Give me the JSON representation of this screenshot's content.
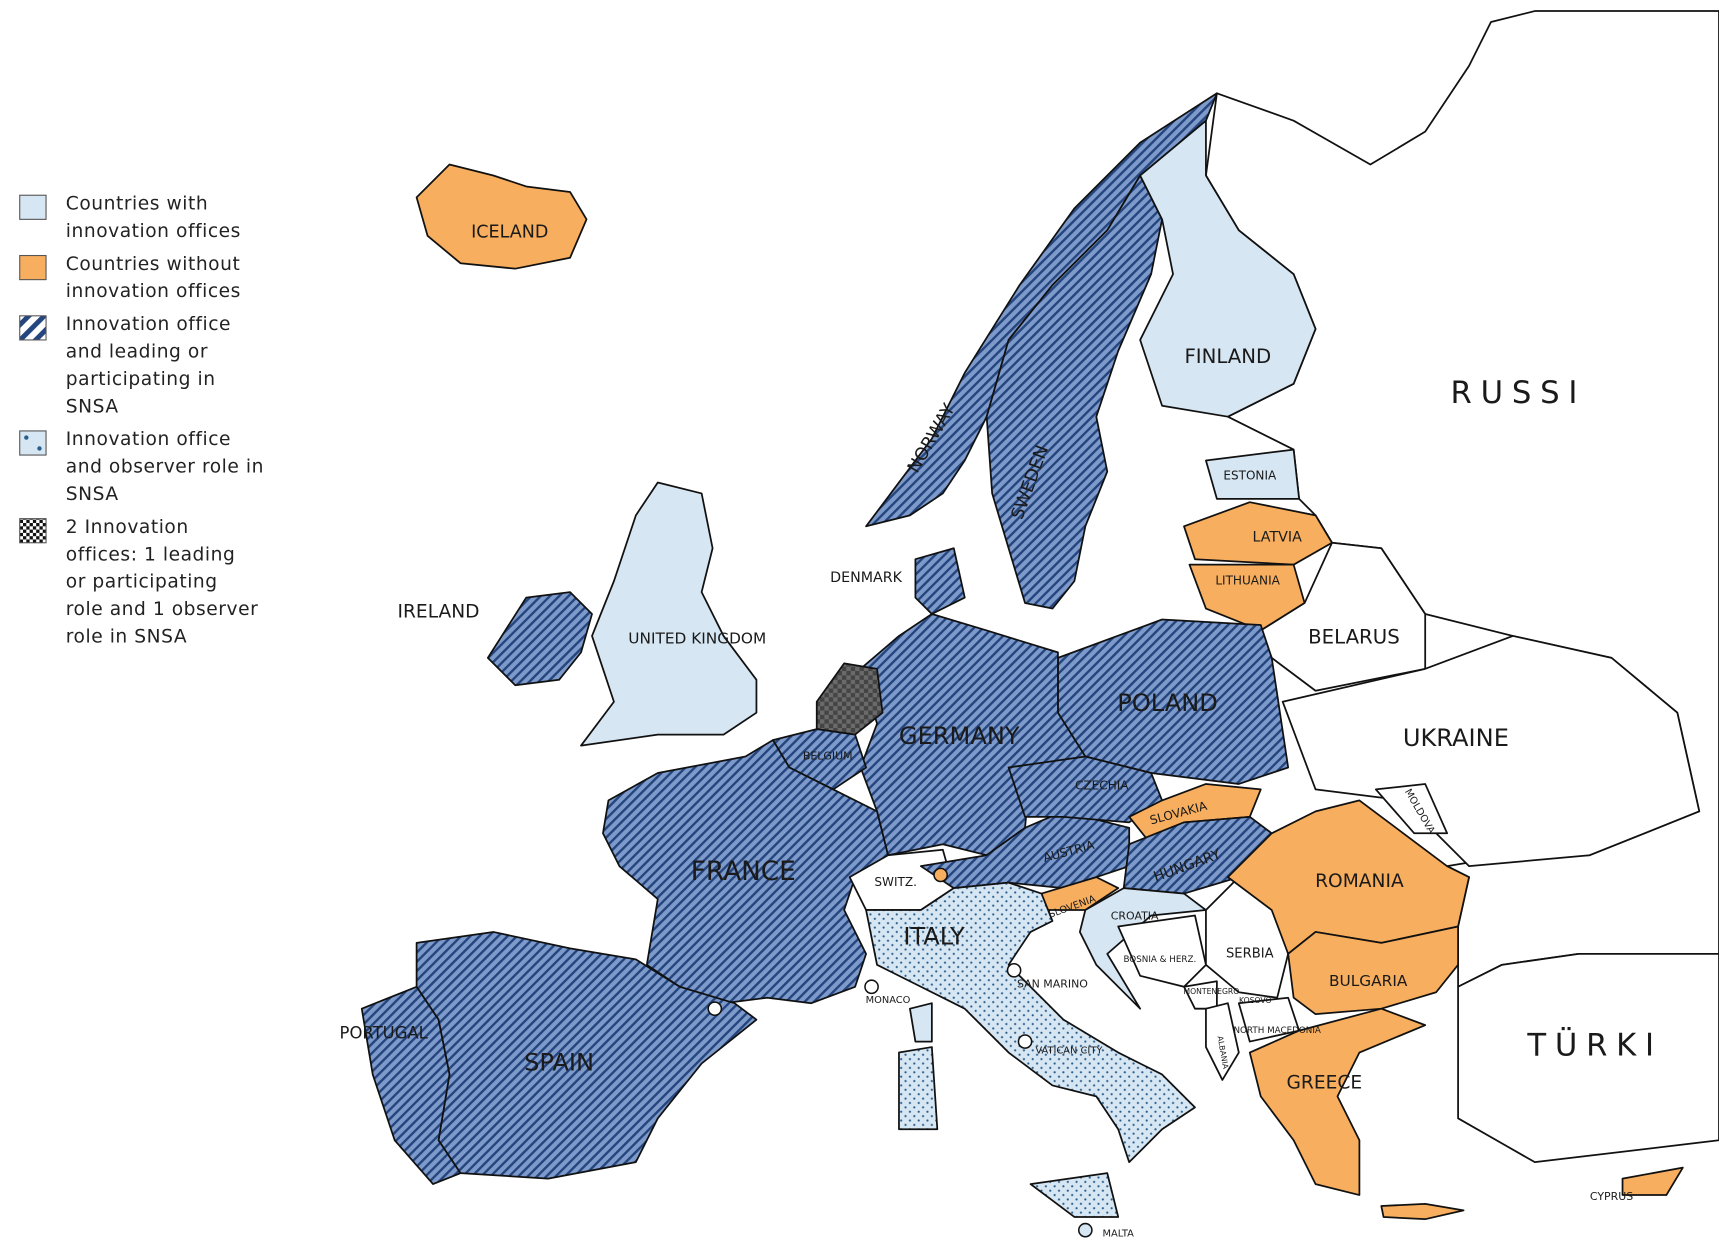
{
  "legend": [
    {
      "lines": [
        "Countries with",
        "innovation offices"
      ]
    },
    {
      "lines": [
        "Countries without",
        "innovation offices"
      ]
    },
    {
      "lines": [
        "Innovation office",
        "and leading or",
        "participating in",
        "SNSA"
      ]
    },
    {
      "lines": [
        "Innovation office",
        "and observer role in",
        "SNSA"
      ]
    },
    {
      "lines": [
        "2 Innovation",
        "offices: 1 leading",
        "or participating",
        "role and 1 observer",
        "role in SNSA"
      ]
    }
  ],
  "labels": [
    "ICELAND",
    "FINLAND",
    "RUSSI",
    "ESTONIA",
    "LATVIA",
    "LITHUANIA",
    "DENMARK",
    "IRELAND",
    "UNITED KINGDOM",
    "BELARUS",
    "POLAND",
    "GERMANY",
    "UKRAINE",
    "BELGIUM",
    "CZECHIA",
    "SLOVAKIA",
    "MOLDOVA",
    "AUSTRIA",
    "HUNGARY",
    "FRANCE",
    "ROMANIA",
    "SWITZ.",
    "SLOVENIA",
    "CROATIA",
    "ITALY",
    "BOSNIA & HERZ.",
    "SERBIA",
    "SAN MARINO",
    "BULGARIA",
    "MONACO",
    "MONTENEGRO",
    "KOSOVO",
    "NORTH MACEDONIA",
    "PORTUGAL",
    "VATICAN CITY",
    "TÜRKI",
    "SPAIN",
    "ALBANIA",
    "GREECE",
    "CYPRUS",
    "MALTA",
    "NORWAY",
    "SWEDEN"
  ]
}
